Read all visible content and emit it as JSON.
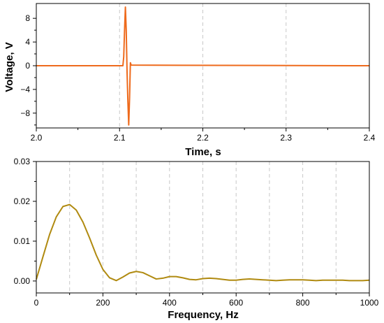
{
  "chart_data": [
    {
      "type": "line",
      "title": "",
      "xlabel": "Time, s",
      "ylabel": "Voltage, V",
      "xlim": [
        2.0,
        2.4
      ],
      "ylim": [
        -10.5,
        10.5
      ],
      "xticks": [
        "2.0",
        "2.1",
        "2.2",
        "2.3",
        "2.4"
      ],
      "yticks": [
        "8",
        "4",
        "0",
        "−4",
        "−8"
      ],
      "grid": "vertical dashed at 2.1, 2.2, 2.3",
      "color": "#ee6a1c",
      "series": [
        {
          "x": [
            2.0,
            2.104,
            2.105,
            2.106,
            2.107,
            2.108,
            2.109,
            2.11,
            2.111,
            2.112,
            2.113,
            2.114,
            2.4
          ],
          "y": [
            0.0,
            0.0,
            1.5,
            6.0,
            9.9,
            6.0,
            -1.0,
            -6.0,
            -10.0,
            -5.5,
            0.5,
            0.1,
            0.0
          ]
        }
      ]
    },
    {
      "type": "line",
      "title": "",
      "xlabel": "Frequency, Hz",
      "ylabel": "",
      "xlim": [
        0,
        1000
      ],
      "ylim": [
        -0.003,
        0.03
      ],
      "xticks": [
        "0",
        "200",
        "400",
        "600",
        "800",
        "1000"
      ],
      "yticks": [
        "0.03",
        "0.02",
        "0.01",
        "0.00"
      ],
      "grid": "vertical dashed every 100",
      "color": "#b08a10",
      "series": [
        {
          "x": [
            0,
            20,
            40,
            60,
            80,
            100,
            120,
            140,
            160,
            180,
            200,
            220,
            240,
            260,
            280,
            300,
            320,
            340,
            360,
            380,
            400,
            420,
            440,
            460,
            480,
            500,
            520,
            540,
            560,
            580,
            600,
            620,
            640,
            660,
            680,
            700,
            720,
            740,
            760,
            780,
            800,
            820,
            840,
            860,
            880,
            900,
            920,
            940,
            960,
            980,
            1000
          ],
          "y": [
            0.0004,
            0.0061,
            0.0117,
            0.0161,
            0.0187,
            0.0192,
            0.0178,
            0.0148,
            0.0108,
            0.0065,
            0.0029,
            0.0008,
            0.0001,
            0.001,
            0.002,
            0.0024,
            0.0021,
            0.0013,
            0.0005,
            0.0007,
            0.0011,
            0.0011,
            0.0008,
            0.0004,
            0.0003,
            0.0006,
            0.0007,
            0.0006,
            0.0004,
            0.0002,
            0.0002,
            0.0004,
            0.0005,
            0.0004,
            0.0003,
            0.0002,
            0.0001,
            0.0002,
            0.0003,
            0.0003,
            0.0003,
            0.0002,
            0.0001,
            0.0002,
            0.0002,
            0.0002,
            0.0002,
            0.0001,
            0.0001,
            0.0001,
            0.0002
          ]
        }
      ]
    }
  ]
}
